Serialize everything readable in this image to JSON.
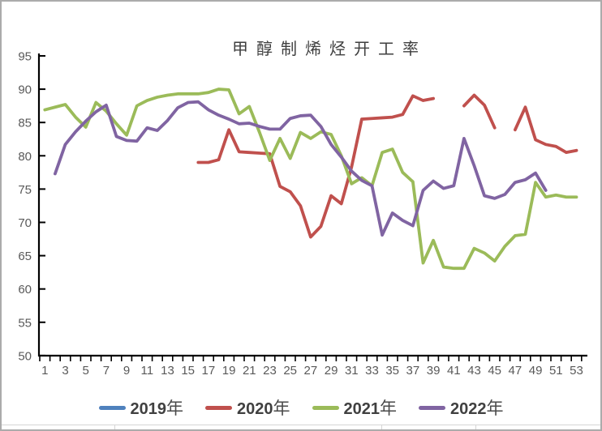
{
  "chart_data": {
    "type": "line",
    "title": "甲醇制烯烃开工率",
    "xlabel": "",
    "ylabel": "",
    "ylim": [
      50,
      95
    ],
    "y_ticks": [
      50,
      55,
      60,
      65,
      70,
      75,
      80,
      85,
      90,
      95
    ],
    "x_range": [
      1,
      53
    ],
    "x_tick_labels": [
      1,
      3,
      5,
      7,
      9,
      11,
      13,
      15,
      17,
      19,
      21,
      23,
      25,
      27,
      29,
      31,
      33,
      35,
      37,
      39,
      41,
      43,
      45,
      47,
      49,
      51,
      53
    ],
    "grid": false,
    "legend_position": "bottom",
    "axis_color": "#000000",
    "tick_label_color": "#595959",
    "series": [
      {
        "name": "2019年",
        "color": "#4F81BD",
        "values": [
          null,
          null,
          null,
          null,
          null,
          null,
          null,
          null,
          null,
          null,
          null,
          null,
          null,
          null,
          null,
          null,
          null,
          null,
          null,
          null,
          null,
          null,
          null,
          null,
          null,
          null,
          null,
          null,
          null,
          null,
          null,
          null,
          null,
          null,
          null,
          null,
          null,
          null,
          null,
          null,
          null,
          null,
          null,
          null,
          null,
          null,
          null,
          null,
          null,
          null,
          null,
          null,
          null
        ]
      },
      {
        "name": "2020年",
        "color": "#C0504D",
        "values": [
          null,
          null,
          null,
          null,
          null,
          null,
          null,
          null,
          null,
          null,
          null,
          null,
          null,
          null,
          null,
          79.0,
          79.0,
          79.4,
          83.9,
          80.6,
          80.5,
          80.4,
          80.3,
          75.4,
          74.6,
          72.5,
          67.8,
          69.4,
          74.0,
          72.8,
          78.3,
          85.5,
          85.6,
          85.7,
          85.8,
          86.2,
          89.0,
          88.3,
          88.6,
          null,
          null,
          87.5,
          89.1,
          87.6,
          84.2,
          null,
          83.9,
          87.3,
          82.4,
          81.7,
          81.4,
          80.5,
          80.8
        ]
      },
      {
        "name": "2021年",
        "color": "#9BBB59",
        "values": [
          86.9,
          87.3,
          87.7,
          85.8,
          84.3,
          88.0,
          86.7,
          84.8,
          83.1,
          87.5,
          88.3,
          88.8,
          89.1,
          89.3,
          89.3,
          89.3,
          89.5,
          90.0,
          89.9,
          86.3,
          87.4,
          83.5,
          79.3,
          82.6,
          79.6,
          83.5,
          82.6,
          83.6,
          83.2,
          80.0,
          75.8,
          76.7,
          75.5,
          80.5,
          81.0,
          77.5,
          76.1,
          63.9,
          67.3,
          63.3,
          63.1,
          63.1,
          66.1,
          65.4,
          64.2,
          66.4,
          68.0,
          68.2,
          76.0,
          73.8,
          74.1,
          73.8,
          73.8
        ]
      },
      {
        "name": "2022年",
        "color": "#8064A2",
        "values": [
          null,
          77.3,
          81.7,
          83.6,
          85.2,
          86.6,
          87.6,
          82.9,
          82.3,
          82.2,
          84.2,
          83.8,
          85.3,
          87.2,
          88.0,
          88.1,
          86.9,
          86.1,
          85.5,
          84.8,
          84.9,
          84.4,
          84.0,
          84.0,
          85.6,
          86.0,
          86.1,
          84.4,
          81.7,
          79.8,
          77.7,
          76.3,
          75.5,
          68.1,
          71.4,
          70.3,
          69.5,
          74.8,
          76.2,
          75.1,
          75.5,
          82.6,
          78.5,
          74.0,
          73.6,
          74.2,
          76.0,
          76.4,
          77.4,
          74.8,
          null,
          null,
          null
        ]
      }
    ]
  }
}
